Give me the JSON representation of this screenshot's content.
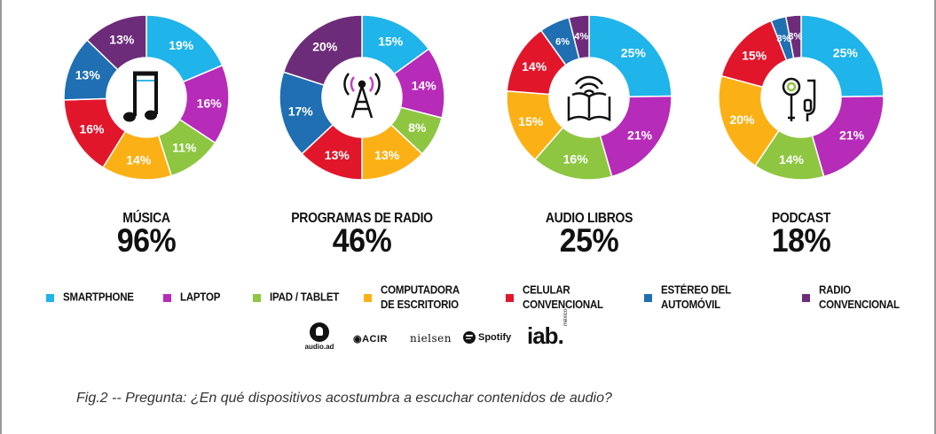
{
  "legend": [
    {
      "key": "smartphone",
      "label": "SMARTPHONE",
      "color": "#1fb4ea"
    },
    {
      "key": "laptop",
      "label": "LAPTOP",
      "color": "#b62bb8"
    },
    {
      "key": "ipad",
      "label": "IPAD / TABLET",
      "color": "#8ec641"
    },
    {
      "key": "desktop",
      "label": "COMPUTADORA\nDE ESCRITORIO",
      "color": "#fbb116"
    },
    {
      "key": "cellular",
      "label": "CELULAR\nCONVENCIONAL",
      "color": "#e1162b"
    },
    {
      "key": "car",
      "label": "ESTÉREO DEL\nAUTOMÓVIL",
      "color": "#1f6fb2"
    },
    {
      "key": "radio",
      "label": "RADIO\nCONVENCIONAL",
      "color": "#6d2c7a"
    }
  ],
  "chart_data": [
    {
      "type": "pie",
      "title": "MÚSICA",
      "total_label": "96%",
      "icon": "music-note-icon",
      "categories": [
        "SMARTPHONE",
        "LAPTOP",
        "IPAD / TABLET",
        "COMPUTADORA DE ESCRITORIO",
        "CELULAR CONVENCIONAL",
        "ESTÉREO DEL AUTOMÓVIL",
        "RADIO CONVENCIONAL"
      ],
      "values": [
        19,
        16,
        11,
        14,
        16,
        13,
        13
      ],
      "labels": [
        "19%",
        "16%",
        "11%",
        "14%",
        "16%",
        "13%",
        "13%"
      ]
    },
    {
      "type": "pie",
      "title": "PROGRAMAS DE RADIO",
      "total_label": "46%",
      "icon": "radio-tower-icon",
      "categories": [
        "SMARTPHONE",
        "LAPTOP",
        "IPAD / TABLET",
        "COMPUTADORA DE ESCRITORIO",
        "CELULAR CONVENCIONAL",
        "ESTÉREO DEL AUTOMÓVIL",
        "RADIO CONVENCIONAL"
      ],
      "values": [
        15,
        14,
        8,
        13,
        13,
        17,
        20
      ],
      "labels": [
        "15%",
        "14%",
        "8%",
        "13%",
        "13%",
        "17%",
        "20%"
      ]
    },
    {
      "type": "pie",
      "title": "AUDIO LIBROS",
      "total_label": "25%",
      "icon": "open-book-icon",
      "categories": [
        "SMARTPHONE",
        "LAPTOP",
        "IPAD / TABLET",
        "COMPUTADORA DE ESCRITORIO",
        "CELULAR CONVENCIONAL",
        "ESTÉREO DEL AUTOMÓVIL",
        "RADIO CONVENCIONAL"
      ],
      "values": [
        25,
        21,
        16,
        15,
        14,
        6,
        4
      ],
      "labels": [
        "25%",
        "21%",
        "16%",
        "15%",
        "14%",
        "6%",
        "4%"
      ]
    },
    {
      "type": "pie",
      "title": "PODCAST",
      "total_label": "18%",
      "icon": "headphones-icon",
      "categories": [
        "SMARTPHONE",
        "LAPTOP",
        "IPAD / TABLET",
        "COMPUTADORA DE ESCRITORIO",
        "CELULAR CONVENCIONAL",
        "ESTÉREO DEL AUTOMÓVIL",
        "RADIO CONVENCIONAL"
      ],
      "values": [
        25,
        21,
        14,
        20,
        15,
        3,
        3
      ],
      "labels": [
        "25%",
        "21%",
        "14%",
        "20%",
        "15%",
        "3%",
        "3%"
      ]
    }
  ],
  "logos": {
    "audioad": "audio.ad",
    "acir": "ACIR",
    "nielsen": "nielsen",
    "spotify": "Spotify",
    "iab": "iab.",
    "iab_sub": "méxico"
  },
  "caption": "Fig.2 -- Pregunta: ¿En qué dispositivos acostumbra a escuchar contenidos de audio?"
}
